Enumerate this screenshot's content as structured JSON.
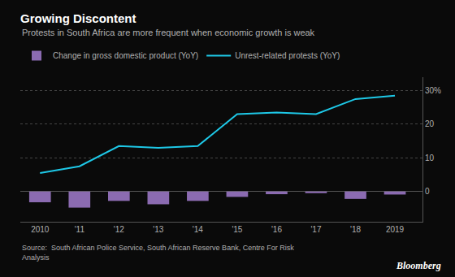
{
  "chart_data": {
    "type": "bar",
    "title": "Growing Discontent",
    "subtitle": "Protests in South Africa are more frequent when economic growth is weak",
    "x": [
      2010,
      2011,
      2012,
      2013,
      2014,
      2015,
      2016,
      2017,
      2018,
      2019
    ],
    "series": [
      {
        "name": "Change in gross domestic product (YoY)",
        "type": "bar",
        "color": "#8B6BB1",
        "values": [
          -3.2,
          -4.8,
          -2.8,
          -3.8,
          -2.8,
          -1.6,
          -0.8,
          -0.5,
          -2.2,
          -0.9
        ]
      },
      {
        "name": "Unrest-related protests (YoY)",
        "type": "line",
        "color": "#1ec8e7",
        "values": [
          5.5,
          7.5,
          13.5,
          13.0,
          13.5,
          23.0,
          23.5,
          23.0,
          27.5,
          28.5
        ]
      }
    ],
    "xlim": [
      2009.5,
      2019.7
    ],
    "xticks": [
      2010,
      {
        "value": 2011,
        "label": "'11"
      },
      {
        "value": 2012,
        "label": "'12"
      },
      {
        "value": 2013,
        "label": "'13"
      },
      {
        "value": 2014,
        "label": "'14"
      },
      {
        "value": 2015,
        "label": "'15"
      },
      {
        "value": 2016,
        "label": "'16"
      },
      {
        "value": 2017,
        "label": "'17"
      },
      {
        "value": 2018,
        "label": "'18"
      },
      2019
    ],
    "ylim": [
      -9,
      34
    ],
    "yticks": [
      0,
      10,
      20,
      {
        "value": 30,
        "label": "30%"
      }
    ],
    "grid": true,
    "legend": "top left",
    "annotations": [
      "Source:  South African Police Service, South African Reserve Bank, Centre For Risk\nAnalysis",
      "Bloomberg"
    ]
  }
}
